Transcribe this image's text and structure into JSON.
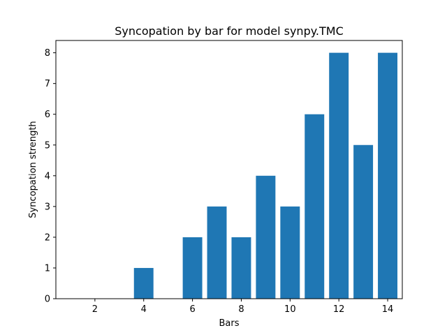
{
  "chart_data": {
    "type": "bar",
    "title": "Syncopation by bar for model synpy.TMC",
    "xlabel": "Bars",
    "ylabel": "Syncopation strength",
    "x": [
      1,
      2,
      3,
      4,
      5,
      6,
      7,
      8,
      9,
      10,
      11,
      12,
      13,
      14
    ],
    "values": [
      0,
      0,
      0,
      1,
      0,
      2,
      3,
      2,
      4,
      3,
      6,
      8,
      5,
      8
    ],
    "xlim": [
      0.4,
      14.6
    ],
    "ylim": [
      0,
      8.4
    ],
    "xticks": [
      2,
      4,
      6,
      8,
      10,
      12,
      14
    ],
    "yticks": [
      0,
      1,
      2,
      3,
      4,
      5,
      6,
      7,
      8
    ],
    "bar_color": "#1f77b4",
    "grid": false,
    "legend": false
  }
}
